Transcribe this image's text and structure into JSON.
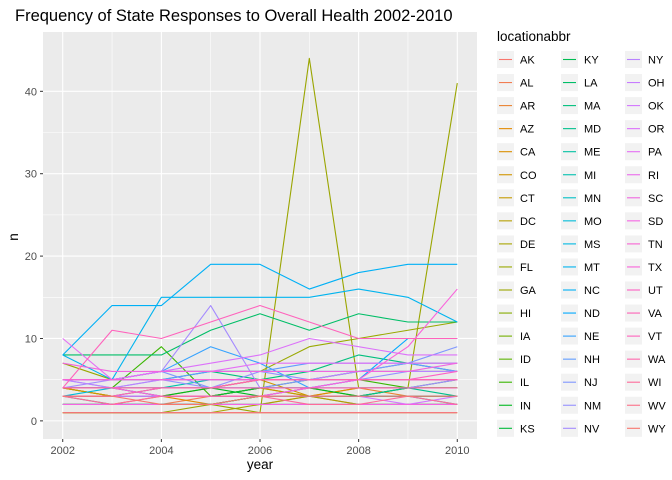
{
  "chart_data": {
    "type": "line",
    "title": "Frequency of State Responses to Overall Health 2002-2010",
    "xlabel": "year",
    "ylabel": "n",
    "xlim": [
      2002,
      2010
    ],
    "ylim": [
      0,
      45
    ],
    "x_ticks": [
      2002,
      2004,
      2006,
      2008,
      2010
    ],
    "y_ticks": [
      0,
      10,
      20,
      30,
      40
    ],
    "grid": true,
    "legend": {
      "title": "locationabbr",
      "placement": "right",
      "columns": 3
    },
    "x": [
      2002,
      2003,
      2004,
      2005,
      2006,
      2007,
      2008,
      2009,
      2010
    ],
    "series": [
      {
        "name": "AK",
        "color": "#F8766D",
        "values": [
          null,
          null,
          2,
          2,
          2,
          3,
          2,
          2,
          2
        ]
      },
      {
        "name": "AL",
        "color": "#F27D52",
        "values": [
          2,
          2,
          2,
          3,
          3,
          3,
          3,
          3,
          3
        ]
      },
      {
        "name": "AR",
        "color": "#EA8331",
        "values": [
          2,
          2,
          3,
          3,
          3,
          3,
          4,
          3,
          3
        ]
      },
      {
        "name": "AZ",
        "color": "#E38900",
        "values": [
          4,
          3,
          3,
          2,
          3,
          3,
          3,
          3,
          3
        ]
      },
      {
        "name": "CA",
        "color": "#DA8F00",
        "values": [
          4,
          4,
          3,
          3,
          4,
          3,
          4,
          4,
          4
        ]
      },
      {
        "name": "CO",
        "color": "#D09400",
        "values": [
          4,
          3,
          3,
          4,
          5,
          3,
          3,
          4,
          4
        ]
      },
      {
        "name": "CT",
        "color": "#C49A00",
        "values": [
          4,
          3,
          3,
          3,
          4,
          3,
          3,
          3,
          3
        ]
      },
      {
        "name": "DC",
        "color": "#B79F00",
        "values": [
          1,
          1,
          1,
          1,
          1,
          1,
          1,
          1,
          1
        ]
      },
      {
        "name": "DE",
        "color": "#A9A400",
        "values": [
          1,
          1,
          1,
          1,
          2,
          3,
          2,
          2,
          2
        ]
      },
      {
        "name": "FL",
        "color": "#99A800",
        "values": [
          7,
          5,
          6,
          6,
          6,
          9,
          10,
          11,
          12
        ]
      },
      {
        "name": "GA",
        "color": "#9AA500",
        "values": [
          1,
          1,
          1,
          2,
          1,
          44,
          4,
          4,
          41
        ]
      },
      {
        "name": "HI",
        "color": "#86AC00",
        "values": [
          4,
          4,
          4,
          4,
          4,
          4,
          3,
          3,
          3
        ]
      },
      {
        "name": "IA",
        "color": "#73B000",
        "values": [
          2,
          2,
          2,
          2,
          2,
          2,
          2,
          2,
          2
        ]
      },
      {
        "name": "ID",
        "color": "#5BB300",
        "values": [
          3,
          3,
          4,
          4,
          5,
          5,
          6,
          6,
          6
        ]
      },
      {
        "name": "IL",
        "color": "#39B600",
        "values": [
          4,
          4,
          9,
          3,
          4,
          5,
          5,
          4,
          4
        ]
      },
      {
        "name": "IN",
        "color": "#00B81F",
        "values": [
          3,
          3,
          3,
          4,
          3,
          4,
          3,
          4,
          5
        ]
      },
      {
        "name": "KS",
        "color": "#00BA38",
        "values": [
          3,
          3,
          3,
          3,
          4,
          4,
          4,
          4,
          4
        ]
      },
      {
        "name": "KY",
        "color": "#00BC52",
        "values": [
          2,
          2,
          2,
          2,
          3,
          3,
          3,
          3,
          3
        ]
      },
      {
        "name": "LA",
        "color": "#00BE67",
        "values": [
          8,
          8,
          8,
          11,
          13,
          11,
          13,
          12,
          12
        ]
      },
      {
        "name": "MA",
        "color": "#00BF7D",
        "values": [
          5,
          5,
          5,
          6,
          5,
          6,
          8,
          7,
          6
        ]
      },
      {
        "name": "MD",
        "color": "#00C08B",
        "values": [
          3,
          2,
          2,
          2,
          3,
          3,
          3,
          4,
          3
        ]
      },
      {
        "name": "ME",
        "color": "#00C1A3",
        "values": [
          3,
          3,
          3,
          3,
          3,
          3,
          3,
          3,
          2
        ]
      },
      {
        "name": "MI",
        "color": "#00C0AF",
        "values": [
          4,
          4,
          4,
          5,
          5,
          5,
          5,
          5,
          5
        ]
      },
      {
        "name": "MN",
        "color": "#00BFC4",
        "values": [
          5,
          5,
          6,
          6,
          6,
          6,
          6,
          7,
          7
        ]
      },
      {
        "name": "MO",
        "color": "#00BCD8",
        "values": [
          3,
          4,
          3,
          3,
          3,
          3,
          3,
          3,
          3
        ]
      },
      {
        "name": "MS",
        "color": "#00B9E3",
        "values": [
          2,
          2,
          2,
          2,
          2,
          2,
          2,
          2,
          2
        ]
      },
      {
        "name": "MT",
        "color": "#00B4EF",
        "values": [
          8,
          5,
          15,
          15,
          15,
          15,
          16,
          15,
          12
        ]
      },
      {
        "name": "NC",
        "color": "#00B0F6",
        "values": [
          8,
          14,
          14,
          19,
          19,
          16,
          18,
          19,
          19
        ]
      },
      {
        "name": "ND",
        "color": "#00A9FF",
        "values": [
          4,
          4,
          4,
          4,
          4,
          4,
          5,
          10,
          10
        ]
      },
      {
        "name": "NE",
        "color": "#35A2FF",
        "values": [
          5,
          5,
          6,
          9,
          7,
          4,
          5,
          5,
          5
        ]
      },
      {
        "name": "NH",
        "color": "#619CFF",
        "values": [
          5,
          5,
          5,
          6,
          6,
          7,
          7,
          7,
          6
        ]
      },
      {
        "name": "NJ",
        "color": "#7F96FF",
        "values": [
          5,
          5,
          6,
          4,
          4,
          5,
          6,
          7,
          9
        ]
      },
      {
        "name": "NM",
        "color": "#9590FF",
        "values": [
          5,
          4,
          5,
          4,
          6,
          5,
          5,
          6,
          6
        ]
      },
      {
        "name": "NV",
        "color": "#A58AFF",
        "values": [
          4,
          5,
          6,
          14,
          4,
          4,
          4,
          4,
          5
        ]
      },
      {
        "name": "NY",
        "color": "#B983FF",
        "values": [
          5,
          4,
          5,
          5,
          5,
          5,
          6,
          6,
          6
        ]
      },
      {
        "name": "OH",
        "color": "#C77CFF",
        "values": [
          3,
          3,
          3,
          3,
          3,
          4,
          5,
          5,
          5
        ]
      },
      {
        "name": "OK",
        "color": "#D376FF",
        "values": [
          3,
          3,
          3,
          3,
          3,
          3,
          3,
          2,
          3
        ]
      },
      {
        "name": "OR",
        "color": "#DC71FA",
        "values": [
          5,
          5,
          6,
          7,
          8,
          10,
          9,
          8,
          8
        ]
      },
      {
        "name": "PA",
        "color": "#E56EF5",
        "values": [
          10,
          5,
          6,
          6,
          7,
          7,
          7,
          7,
          7
        ]
      },
      {
        "name": "RI",
        "color": "#EB6AEC",
        "values": [
          5,
          5,
          5,
          5,
          5,
          5,
          5,
          5,
          5
        ]
      },
      {
        "name": "SC",
        "color": "#F066E0",
        "values": [
          7,
          6,
          6,
          6,
          6,
          6,
          6,
          6,
          7
        ]
      },
      {
        "name": "SD",
        "color": "#F564E3",
        "values": [
          2,
          2,
          2,
          2,
          2,
          2,
          2,
          2,
          2
        ]
      },
      {
        "name": "TN",
        "color": "#F863D3",
        "values": [
          5,
          5,
          5,
          5,
          5,
          5,
          5,
          5,
          5
        ]
      },
      {
        "name": "TX",
        "color": "#FA62DB",
        "values": [
          4,
          4,
          3,
          3,
          3,
          4,
          5,
          9,
          16
        ]
      },
      {
        "name": "UT",
        "color": "#FC61C4",
        "values": [
          3,
          3,
          4,
          4,
          5,
          5,
          5,
          5,
          6
        ]
      },
      {
        "name": "VA",
        "color": "#FD61B5",
        "values": [
          4,
          4,
          4,
          4,
          4,
          4,
          4,
          4,
          4
        ]
      },
      {
        "name": "VT",
        "color": "#FF62BC",
        "values": [
          4,
          11,
          10,
          12,
          14,
          12,
          10,
          10,
          10
        ]
      },
      {
        "name": "WA",
        "color": "#FF65AC",
        "values": [
          4,
          4,
          4,
          4,
          5,
          5,
          5,
          5,
          5
        ]
      },
      {
        "name": "WI",
        "color": "#FE6A9A",
        "values": [
          3,
          2,
          3,
          3,
          3,
          2,
          2,
          3,
          2
        ]
      },
      {
        "name": "WV",
        "color": "#FC7088",
        "values": [
          1,
          1,
          1,
          1,
          1,
          1,
          1,
          1,
          1
        ]
      },
      {
        "name": "WY",
        "color": "#F8766D",
        "values": [
          3,
          3,
          2,
          2,
          3,
          3,
          3,
          3,
          3
        ]
      }
    ]
  }
}
